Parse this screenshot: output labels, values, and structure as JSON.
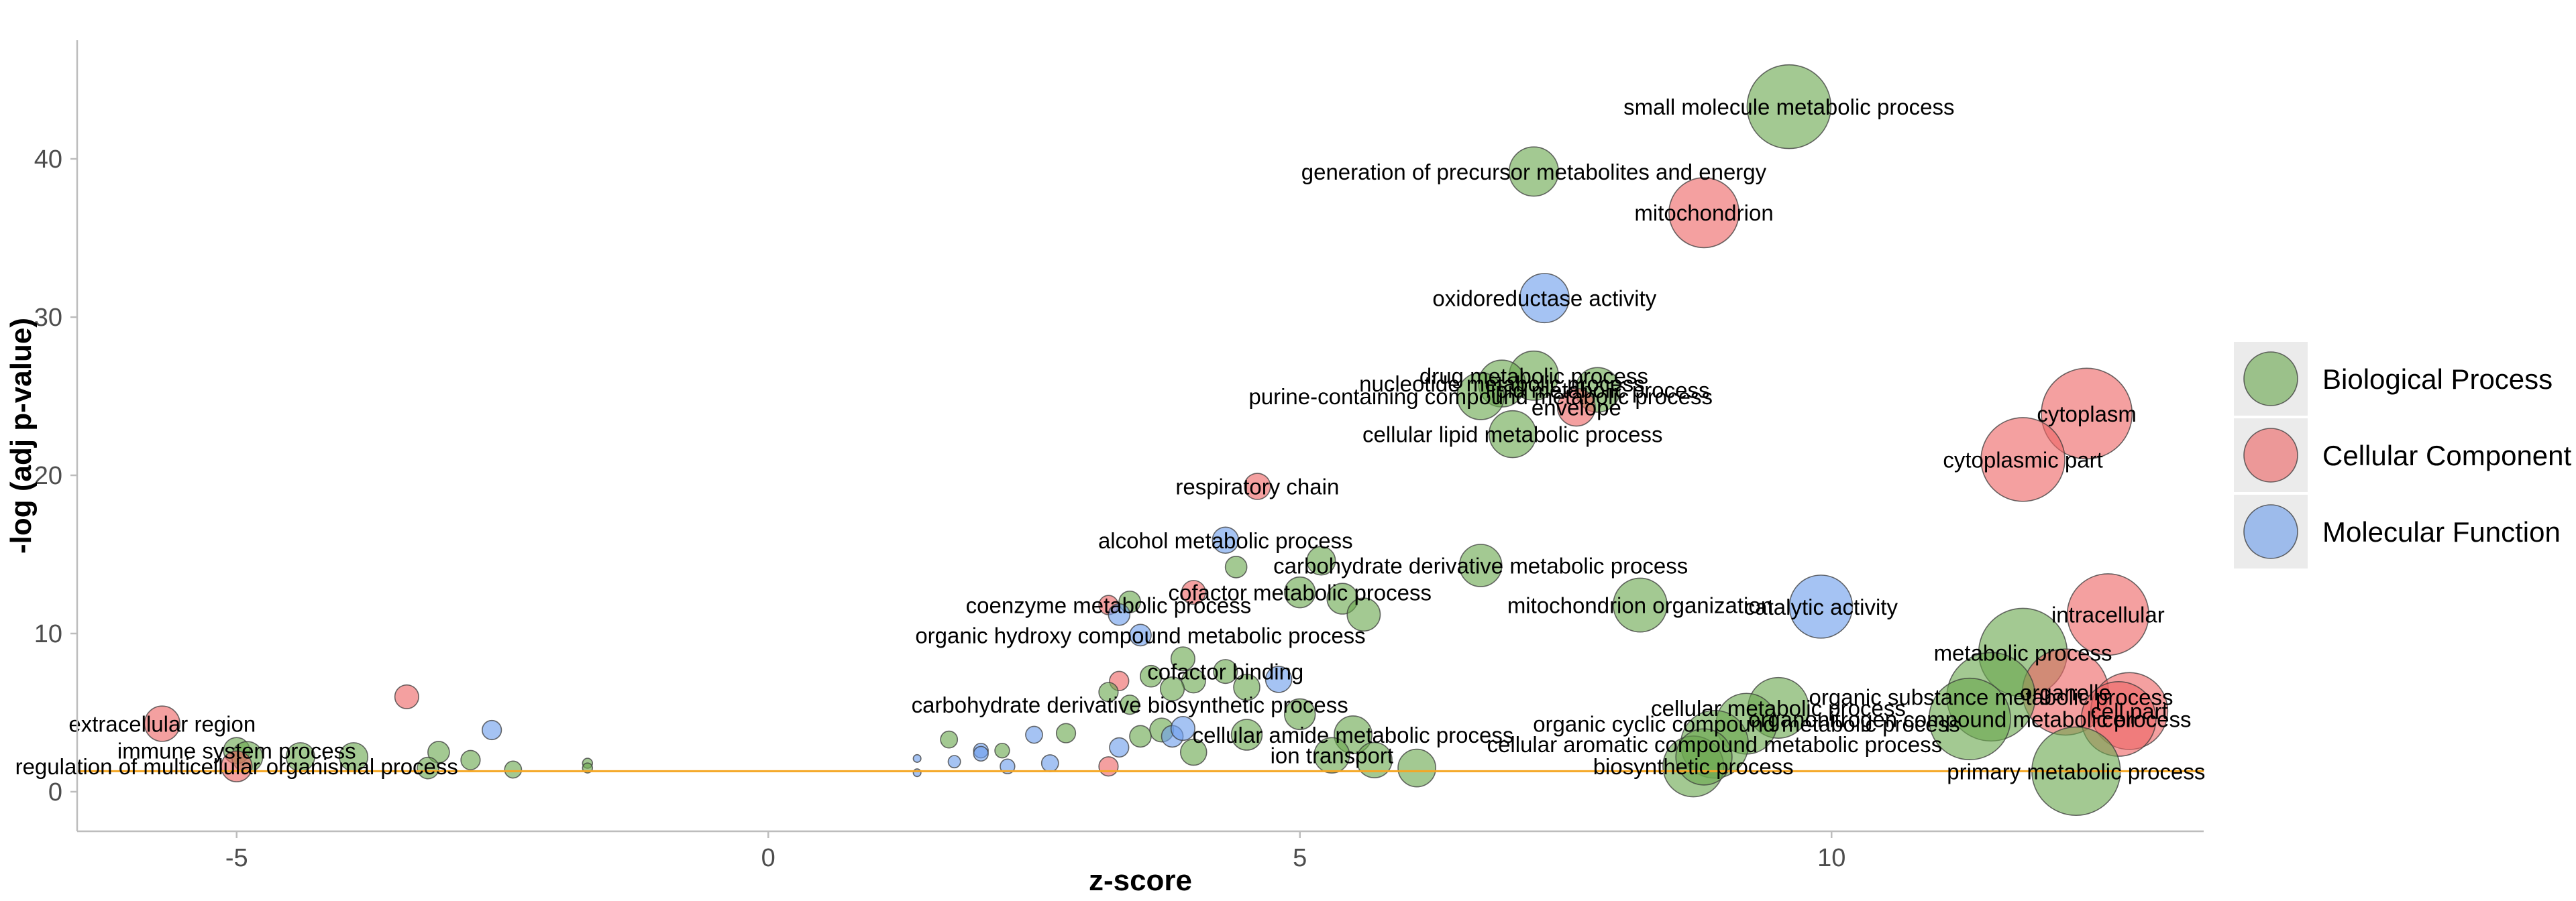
{
  "colors": {
    "Biological Process": "#6aa84f",
    "Cellular Component": "#ee6666",
    "Molecular Function": "#6d9eeb",
    "threshold": "#f5a623",
    "axis": "#bdbdbd"
  },
  "chart_data": {
    "type": "scatter",
    "xlabel": "z-score",
    "ylabel": "-log (adj p-value)",
    "xlim": [
      -6.5,
      13.5
    ],
    "ylim": [
      -2.5,
      47.5
    ],
    "xticks": [
      -5,
      0,
      5,
      10
    ],
    "yticks": [
      0,
      10,
      20,
      30,
      40
    ],
    "grid": false,
    "legend_position": "right",
    "threshold_y": 1.3,
    "legend": [
      "Biological Process",
      "Cellular Component",
      "Molecular Function"
    ],
    "points": [
      {
        "x": 9.6,
        "y": 43.3,
        "size": 34,
        "category": "Biological Process",
        "label": "small molecule metabolic process"
      },
      {
        "x": 7.2,
        "y": 39.2,
        "size": 19,
        "category": "Biological Process",
        "label": "generation of precursor metabolites and energy"
      },
      {
        "x": 8.8,
        "y": 36.6,
        "size": 28,
        "category": "Cellular Component",
        "label": "mitochondrion"
      },
      {
        "x": 7.3,
        "y": 31.2,
        "size": 19,
        "category": "Molecular Function",
        "label": "oxidoreductase activity"
      },
      {
        "x": 7.2,
        "y": 26.3,
        "size": 19,
        "category": "Biological Process",
        "label": "drug metabolic process"
      },
      {
        "x": 6.9,
        "y": 25.8,
        "size": 18,
        "category": "Biological Process",
        "label": "nucleotide metabolic process"
      },
      {
        "x": 7.8,
        "y": 25.4,
        "size": 17,
        "category": "Biological Process",
        "label": "lipid metabolic process"
      },
      {
        "x": 6.7,
        "y": 25.0,
        "size": 18,
        "category": "Biological Process",
        "label": "purine-containing compound metabolic process"
      },
      {
        "x": 7.6,
        "y": 24.3,
        "size": 14,
        "category": "Cellular Component",
        "label": "envelope"
      },
      {
        "x": 7.0,
        "y": 22.6,
        "size": 18,
        "category": "Biological Process",
        "label": "cellular lipid metabolic process"
      },
      {
        "x": 12.4,
        "y": 23.9,
        "size": 37,
        "category": "Cellular Component",
        "label": "cytoplasm"
      },
      {
        "x": 11.8,
        "y": 21.0,
        "size": 34,
        "category": "Cellular Component",
        "label": "cytoplasmic part"
      },
      {
        "x": 4.6,
        "y": 19.3,
        "size": 9,
        "category": "Cellular Component",
        "label": "respiratory chain"
      },
      {
        "x": 4.3,
        "y": 15.9,
        "size": 9,
        "category": "Molecular Function",
        "label": "alcohol metabolic process"
      },
      {
        "x": 5.2,
        "y": 14.6,
        "size": 10,
        "category": "Biological Process",
        "label": ""
      },
      {
        "x": 6.7,
        "y": 14.3,
        "size": 16,
        "category": "Biological Process",
        "label": "carbohydrate derivative metabolic process"
      },
      {
        "x": 4.4,
        "y": 14.2,
        "size": 7,
        "category": "Biological Process",
        "label": ""
      },
      {
        "x": 5.0,
        "y": 12.6,
        "size": 11,
        "category": "Biological Process",
        "label": "cofactor metabolic process"
      },
      {
        "x": 4.0,
        "y": 12.6,
        "size": 8,
        "category": "Cellular Component",
        "label": ""
      },
      {
        "x": 5.4,
        "y": 12.2,
        "size": 11,
        "category": "Biological Process",
        "label": ""
      },
      {
        "x": 8.2,
        "y": 11.8,
        "size": 21,
        "category": "Biological Process",
        "label": "mitochondrion organization"
      },
      {
        "x": 3.2,
        "y": 11.8,
        "size": 6,
        "category": "Cellular Component",
        "label": "coenzyme metabolic process"
      },
      {
        "x": 3.4,
        "y": 12.0,
        "size": 7,
        "category": "Biological Process",
        "label": ""
      },
      {
        "x": 3.3,
        "y": 11.2,
        "size": 7,
        "category": "Molecular Function",
        "label": ""
      },
      {
        "x": 5.6,
        "y": 11.2,
        "size": 12,
        "category": "Biological Process",
        "label": ""
      },
      {
        "x": 9.9,
        "y": 11.7,
        "size": 25,
        "category": "Molecular Function",
        "label": "catalytic activity"
      },
      {
        "x": 12.6,
        "y": 11.2,
        "size": 33,
        "category": "Cellular Component",
        "label": "intracellular"
      },
      {
        "x": 3.5,
        "y": 9.9,
        "size": 7,
        "category": "Molecular Function",
        "label": "organic hydroxy compound metabolic process"
      },
      {
        "x": 11.8,
        "y": 8.8,
        "size": 36,
        "category": "Biological Process",
        "label": "metabolic process"
      },
      {
        "x": 12.2,
        "y": 6.3,
        "size": 35,
        "category": "Cellular Component",
        "label": "organelle"
      },
      {
        "x": 3.9,
        "y": 8.4,
        "size": 8,
        "category": "Biological Process",
        "label": ""
      },
      {
        "x": 4.3,
        "y": 7.6,
        "size": 8,
        "category": "Biological Process",
        "label": "cofactor binding"
      },
      {
        "x": 3.6,
        "y": 7.3,
        "size": 7,
        "category": "Biological Process",
        "label": ""
      },
      {
        "x": 3.3,
        "y": 7.0,
        "size": 6,
        "category": "Cellular Component",
        "label": ""
      },
      {
        "x": 4.0,
        "y": 7.0,
        "size": 8,
        "category": "Biological Process",
        "label": ""
      },
      {
        "x": 4.8,
        "y": 7.1,
        "size": 9,
        "category": "Molecular Function",
        "label": ""
      },
      {
        "x": 4.5,
        "y": 6.6,
        "size": 9,
        "category": "Biological Process",
        "label": ""
      },
      {
        "x": 3.8,
        "y": 6.5,
        "size": 8,
        "category": "Biological Process",
        "label": ""
      },
      {
        "x": 3.2,
        "y": 6.3,
        "size": 6,
        "category": "Biological Process",
        "label": ""
      },
      {
        "x": 11.5,
        "y": 6.0,
        "size": 36,
        "category": "Biological Process",
        "label": "organic substance metabolic process"
      },
      {
        "x": 12.8,
        "y": 5.1,
        "size": 31,
        "category": "Cellular Component",
        "label": "cell part"
      },
      {
        "x": 12.7,
        "y": 4.6,
        "size": 30,
        "category": "Cellular Component",
        "label": "cell"
      },
      {
        "x": 9.5,
        "y": 5.3,
        "size": 24,
        "category": "Biological Process",
        "label": "cellular metabolic process"
      },
      {
        "x": 11.3,
        "y": 4.6,
        "size": 33,
        "category": "Biological Process",
        "label": "organonitrogen compound metabolic process"
      },
      {
        "x": 9.2,
        "y": 4.3,
        "size": 24,
        "category": "Biological Process",
        "label": "organic cyclic compound metabolic process"
      },
      {
        "x": 8.9,
        "y": 3.0,
        "size": 27,
        "category": "Biological Process",
        "label": "cellular aromatic compound metabolic process"
      },
      {
        "x": 5.5,
        "y": 3.6,
        "size": 14,
        "category": "Biological Process",
        "label": "cellular amide metabolic process"
      },
      {
        "x": 5.0,
        "y": 4.9,
        "size": 11,
        "category": "Biological Process",
        "label": ""
      },
      {
        "x": 4.5,
        "y": 3.6,
        "size": 11,
        "category": "Biological Process",
        "label": ""
      },
      {
        "x": 3.4,
        "y": 5.5,
        "size": 6,
        "category": "Biological Process",
        "label": "carbohydrate derivative biosynthetic process"
      },
      {
        "x": 3.7,
        "y": 3.9,
        "size": 8,
        "category": "Biological Process",
        "label": ""
      },
      {
        "x": 3.5,
        "y": 3.5,
        "size": 7,
        "category": "Biological Process",
        "label": ""
      },
      {
        "x": 3.8,
        "y": 3.5,
        "size": 7,
        "category": "Molecular Function",
        "label": ""
      },
      {
        "x": 3.9,
        "y": 4.0,
        "size": 8,
        "category": "Molecular Function",
        "label": ""
      },
      {
        "x": 2.8,
        "y": 3.7,
        "size": 6,
        "category": "Biological Process",
        "label": ""
      },
      {
        "x": 2.5,
        "y": 3.6,
        "size": 5,
        "category": "Molecular Function",
        "label": ""
      },
      {
        "x": 1.7,
        "y": 3.3,
        "size": 5,
        "category": "Biological Process",
        "label": ""
      },
      {
        "x": 2.0,
        "y": 2.6,
        "size": 4,
        "category": "Molecular Function",
        "label": ""
      },
      {
        "x": 2.0,
        "y": 2.4,
        "size": 4,
        "category": "Molecular Function",
        "label": ""
      },
      {
        "x": 2.2,
        "y": 2.6,
        "size": 4,
        "category": "Biological Process",
        "label": ""
      },
      {
        "x": 1.75,
        "y": 1.9,
        "size": 3,
        "category": "Molecular Function",
        "label": ""
      },
      {
        "x": 2.25,
        "y": 1.6,
        "size": 4,
        "category": "Molecular Function",
        "label": ""
      },
      {
        "x": 2.65,
        "y": 1.8,
        "size": 5,
        "category": "Molecular Function",
        "label": ""
      },
      {
        "x": 3.2,
        "y": 1.6,
        "size": 6,
        "category": "Cellular Component",
        "label": ""
      },
      {
        "x": 3.3,
        "y": 2.8,
        "size": 6,
        "category": "Molecular Function",
        "label": ""
      },
      {
        "x": 4.0,
        "y": 2.5,
        "size": 9,
        "category": "Biological Process",
        "label": ""
      },
      {
        "x": 1.4,
        "y": 1.2,
        "size": 1,
        "category": "Molecular Function",
        "label": ""
      },
      {
        "x": 1.4,
        "y": 2.1,
        "size": 1,
        "category": "Molecular Function",
        "label": ""
      },
      {
        "x": 5.3,
        "y": 2.3,
        "size": 13,
        "category": "Biological Process",
        "label": "ion transport"
      },
      {
        "x": 5.7,
        "y": 2.0,
        "size": 13,
        "category": "Biological Process",
        "label": ""
      },
      {
        "x": 6.1,
        "y": 1.5,
        "size": 14,
        "category": "Biological Process",
        "label": ""
      },
      {
        "x": 8.7,
        "y": 1.6,
        "size": 24,
        "category": "Biological Process",
        "label": "biosynthetic process"
      },
      {
        "x": 8.8,
        "y": 2.2,
        "size": 22,
        "category": "Biological Process",
        "label": ""
      },
      {
        "x": 12.3,
        "y": 1.3,
        "size": 36,
        "category": "Biological Process",
        "label": "primary metabolic process"
      },
      {
        "x": -5.7,
        "y": 4.3,
        "size": 13,
        "category": "Cellular Component",
        "label": "extracellular region"
      },
      {
        "x": -5.0,
        "y": 2.6,
        "size": 9,
        "category": "Biological Process",
        "label": "immune system process"
      },
      {
        "x": -4.9,
        "y": 2.2,
        "size": 11,
        "category": "Biological Process",
        "label": ""
      },
      {
        "x": -5.0,
        "y": 1.6,
        "size": 11,
        "category": "Cellular Component",
        "label": "regulation of multicellular organismal process"
      },
      {
        "x": -4.4,
        "y": 2.2,
        "size": 10,
        "category": "Biological Process",
        "label": ""
      },
      {
        "x": -3.9,
        "y": 2.2,
        "size": 10,
        "category": "Biological Process",
        "label": ""
      },
      {
        "x": -3.4,
        "y": 6.0,
        "size": 8,
        "category": "Cellular Component",
        "label": ""
      },
      {
        "x": -3.1,
        "y": 2.5,
        "size": 7,
        "category": "Biological Process",
        "label": ""
      },
      {
        "x": -3.2,
        "y": 1.5,
        "size": 7,
        "category": "Biological Process",
        "label": ""
      },
      {
        "x": -2.8,
        "y": 2.0,
        "size": 6,
        "category": "Biological Process",
        "label": ""
      },
      {
        "x": -2.6,
        "y": 3.9,
        "size": 6,
        "category": "Molecular Function",
        "label": ""
      },
      {
        "x": -2.4,
        "y": 1.4,
        "size": 5,
        "category": "Biological Process",
        "label": ""
      },
      {
        "x": -1.7,
        "y": 1.8,
        "size": 2,
        "category": "Biological Process",
        "label": ""
      },
      {
        "x": -1.7,
        "y": 1.5,
        "size": 2,
        "category": "Biological Process",
        "label": ""
      }
    ]
  }
}
